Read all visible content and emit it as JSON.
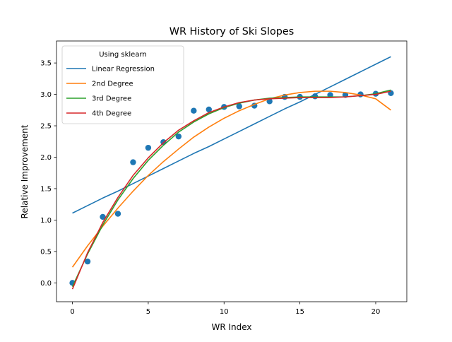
{
  "chart_data": {
    "type": "line",
    "title": "WR History of Ski Slopes",
    "xlabel": "WR Index",
    "ylabel": "Relative Improvement",
    "xlim": [
      -1.05,
      22.05
    ],
    "ylim": [
      -0.3,
      3.85
    ],
    "xticks": [
      0,
      5,
      10,
      15,
      20
    ],
    "yticks": [
      0.0,
      0.5,
      1.0,
      1.5,
      2.0,
      2.5,
      3.0,
      3.5
    ],
    "legend": {
      "title": "Using sklearn",
      "placement": "top-left"
    },
    "grid": false,
    "scatter": {
      "color": "#1f77b4",
      "x": [
        0,
        1,
        2,
        3,
        4,
        5,
        6,
        7,
        8,
        9,
        10,
        11,
        12,
        13,
        14,
        15,
        16,
        17,
        18,
        19,
        20,
        21
      ],
      "y": [
        0.0,
        0.34,
        1.05,
        1.1,
        1.92,
        2.15,
        2.24,
        2.33,
        2.74,
        2.76,
        2.8,
        2.81,
        2.82,
        2.89,
        2.96,
        2.96,
        2.97,
        2.99,
        2.99,
        3.0,
        3.01,
        3.02
      ]
    },
    "x": [
      0,
      1,
      2,
      3,
      4,
      5,
      6,
      7,
      8,
      9,
      10,
      11,
      12,
      13,
      14,
      15,
      16,
      17,
      18,
      19,
      20,
      21
    ],
    "series": [
      {
        "name": "Linear Regression",
        "color": "#1f77b4",
        "values": [
          1.11,
          1.23,
          1.35,
          1.46,
          1.58,
          1.7,
          1.82,
          1.94,
          2.06,
          2.17,
          2.29,
          2.41,
          2.53,
          2.65,
          2.77,
          2.88,
          3.0,
          3.12,
          3.24,
          3.36,
          3.48,
          3.6
        ]
      },
      {
        "name": "2nd Degree",
        "color": "#ff7f0e",
        "values": [
          0.25,
          0.59,
          0.9,
          1.19,
          1.46,
          1.71,
          1.93,
          2.13,
          2.32,
          2.48,
          2.62,
          2.74,
          2.84,
          2.93,
          2.99,
          3.03,
          3.05,
          3.05,
          3.03,
          2.99,
          2.93,
          2.75
        ]
      },
      {
        "name": "3rd Degree",
        "color": "#2ca02c",
        "values": [
          -0.06,
          0.46,
          0.92,
          1.32,
          1.66,
          1.95,
          2.19,
          2.4,
          2.56,
          2.69,
          2.79,
          2.86,
          2.91,
          2.94,
          2.95,
          2.96,
          2.96,
          2.96,
          2.96,
          2.98,
          3.01,
          3.07
        ]
      },
      {
        "name": "4th Degree",
        "color": "#d62728",
        "values": [
          -0.1,
          0.48,
          0.96,
          1.36,
          1.71,
          1.99,
          2.23,
          2.43,
          2.58,
          2.71,
          2.8,
          2.87,
          2.91,
          2.93,
          2.94,
          2.95,
          2.95,
          2.95,
          2.96,
          2.98,
          3.0,
          3.05
        ]
      }
    ]
  }
}
